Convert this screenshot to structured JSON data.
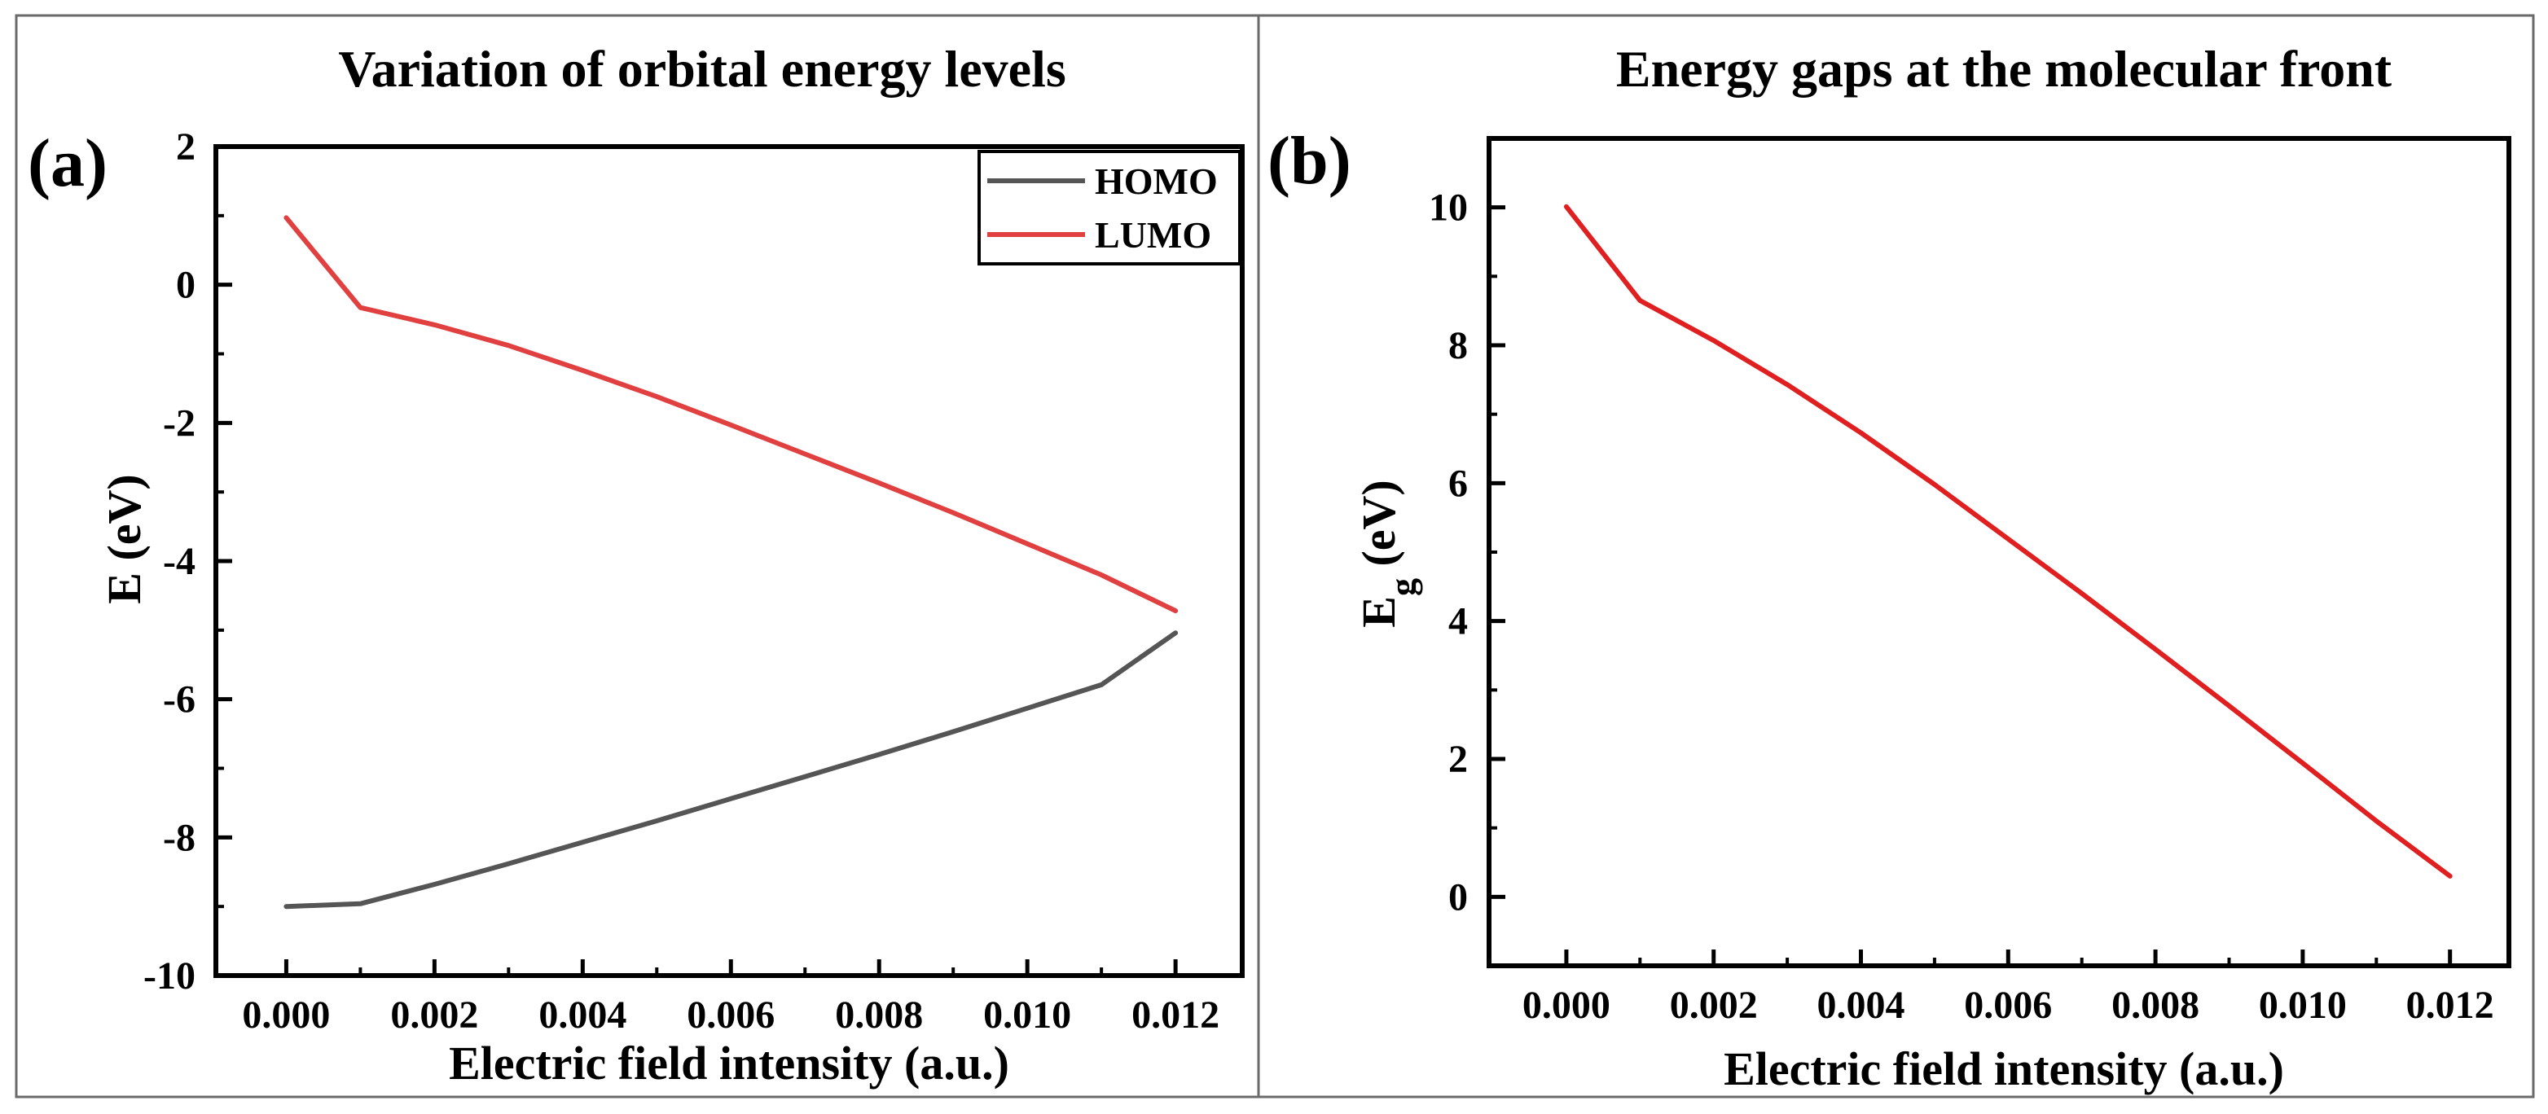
{
  "colors": {
    "homo": "#555555",
    "lumo": "#e04040",
    "gap": "#e02020",
    "frame": "#000000"
  },
  "chart_data": [
    {
      "type": "line",
      "panel_label": "(a)",
      "title": "Variation of orbital energy levels",
      "xlabel": "Electric field intensity (a.u.)",
      "ylabel": "E (eV)",
      "xlim": [
        -0.00095,
        0.0129
      ],
      "ylim": [
        -10,
        2
      ],
      "xticks": [
        0,
        0.002,
        0.004,
        0.006,
        0.008,
        0.01,
        0.012
      ],
      "xtick_labels": [
        "0.000",
        "0.002",
        "0.004",
        "0.006",
        "0.008",
        "0.010",
        "0.012"
      ],
      "yticks": [
        -10,
        -8,
        -6,
        -4,
        -2,
        0,
        2
      ],
      "ytick_labels": [
        "-10",
        "-8",
        "-6",
        "-4",
        "-2",
        "0",
        "2"
      ],
      "legend_position": "top-right",
      "x": [
        0,
        0.001,
        0.002,
        0.003,
        0.004,
        0.005,
        0.006,
        0.007,
        0.008,
        0.009,
        0.01,
        0.011,
        0.012
      ],
      "series": [
        {
          "name": "HOMO",
          "values": [
            -9.0,
            -8.96,
            -8.68,
            -8.38,
            -8.07,
            -7.76,
            -7.44,
            -7.12,
            -6.8,
            -6.47,
            -6.13,
            -5.79,
            -5.04
          ]
        },
        {
          "name": "LUMO",
          "values": [
            0.97,
            -0.33,
            -0.58,
            -0.88,
            -1.24,
            -1.62,
            -2.03,
            -2.45,
            -2.87,
            -3.3,
            -3.75,
            -4.2,
            -4.72
          ]
        }
      ]
    },
    {
      "type": "line",
      "panel_label": "(b)",
      "title": "Energy gaps at the molecular front",
      "xlabel": "Electric field intensity (a.u.)",
      "ylabel": "E",
      "ylabel_subscript": "g",
      "ylabel_unit": " (eV)",
      "xlim": [
        -0.00105,
        0.0128
      ],
      "ylim": [
        -1,
        11
      ],
      "xticks": [
        0,
        0.002,
        0.004,
        0.006,
        0.008,
        0.01,
        0.012
      ],
      "xtick_labels": [
        "0.000",
        "0.002",
        "0.004",
        "0.006",
        "0.008",
        "0.010",
        "0.012"
      ],
      "yticks": [
        0,
        2,
        4,
        6,
        8,
        10
      ],
      "ytick_labels": [
        "0",
        "2",
        "4",
        "6",
        "8",
        "10"
      ],
      "x": [
        0,
        0.001,
        0.002,
        0.003,
        0.004,
        0.005,
        0.006,
        0.007,
        0.008,
        0.009,
        0.01,
        0.011,
        0.012
      ],
      "series": [
        {
          "name": "Eg",
          "values": [
            10.01,
            8.65,
            8.07,
            7.43,
            6.73,
            5.98,
            5.19,
            4.4,
            3.59,
            2.77,
            1.94,
            1.1,
            0.3
          ]
        }
      ]
    }
  ]
}
